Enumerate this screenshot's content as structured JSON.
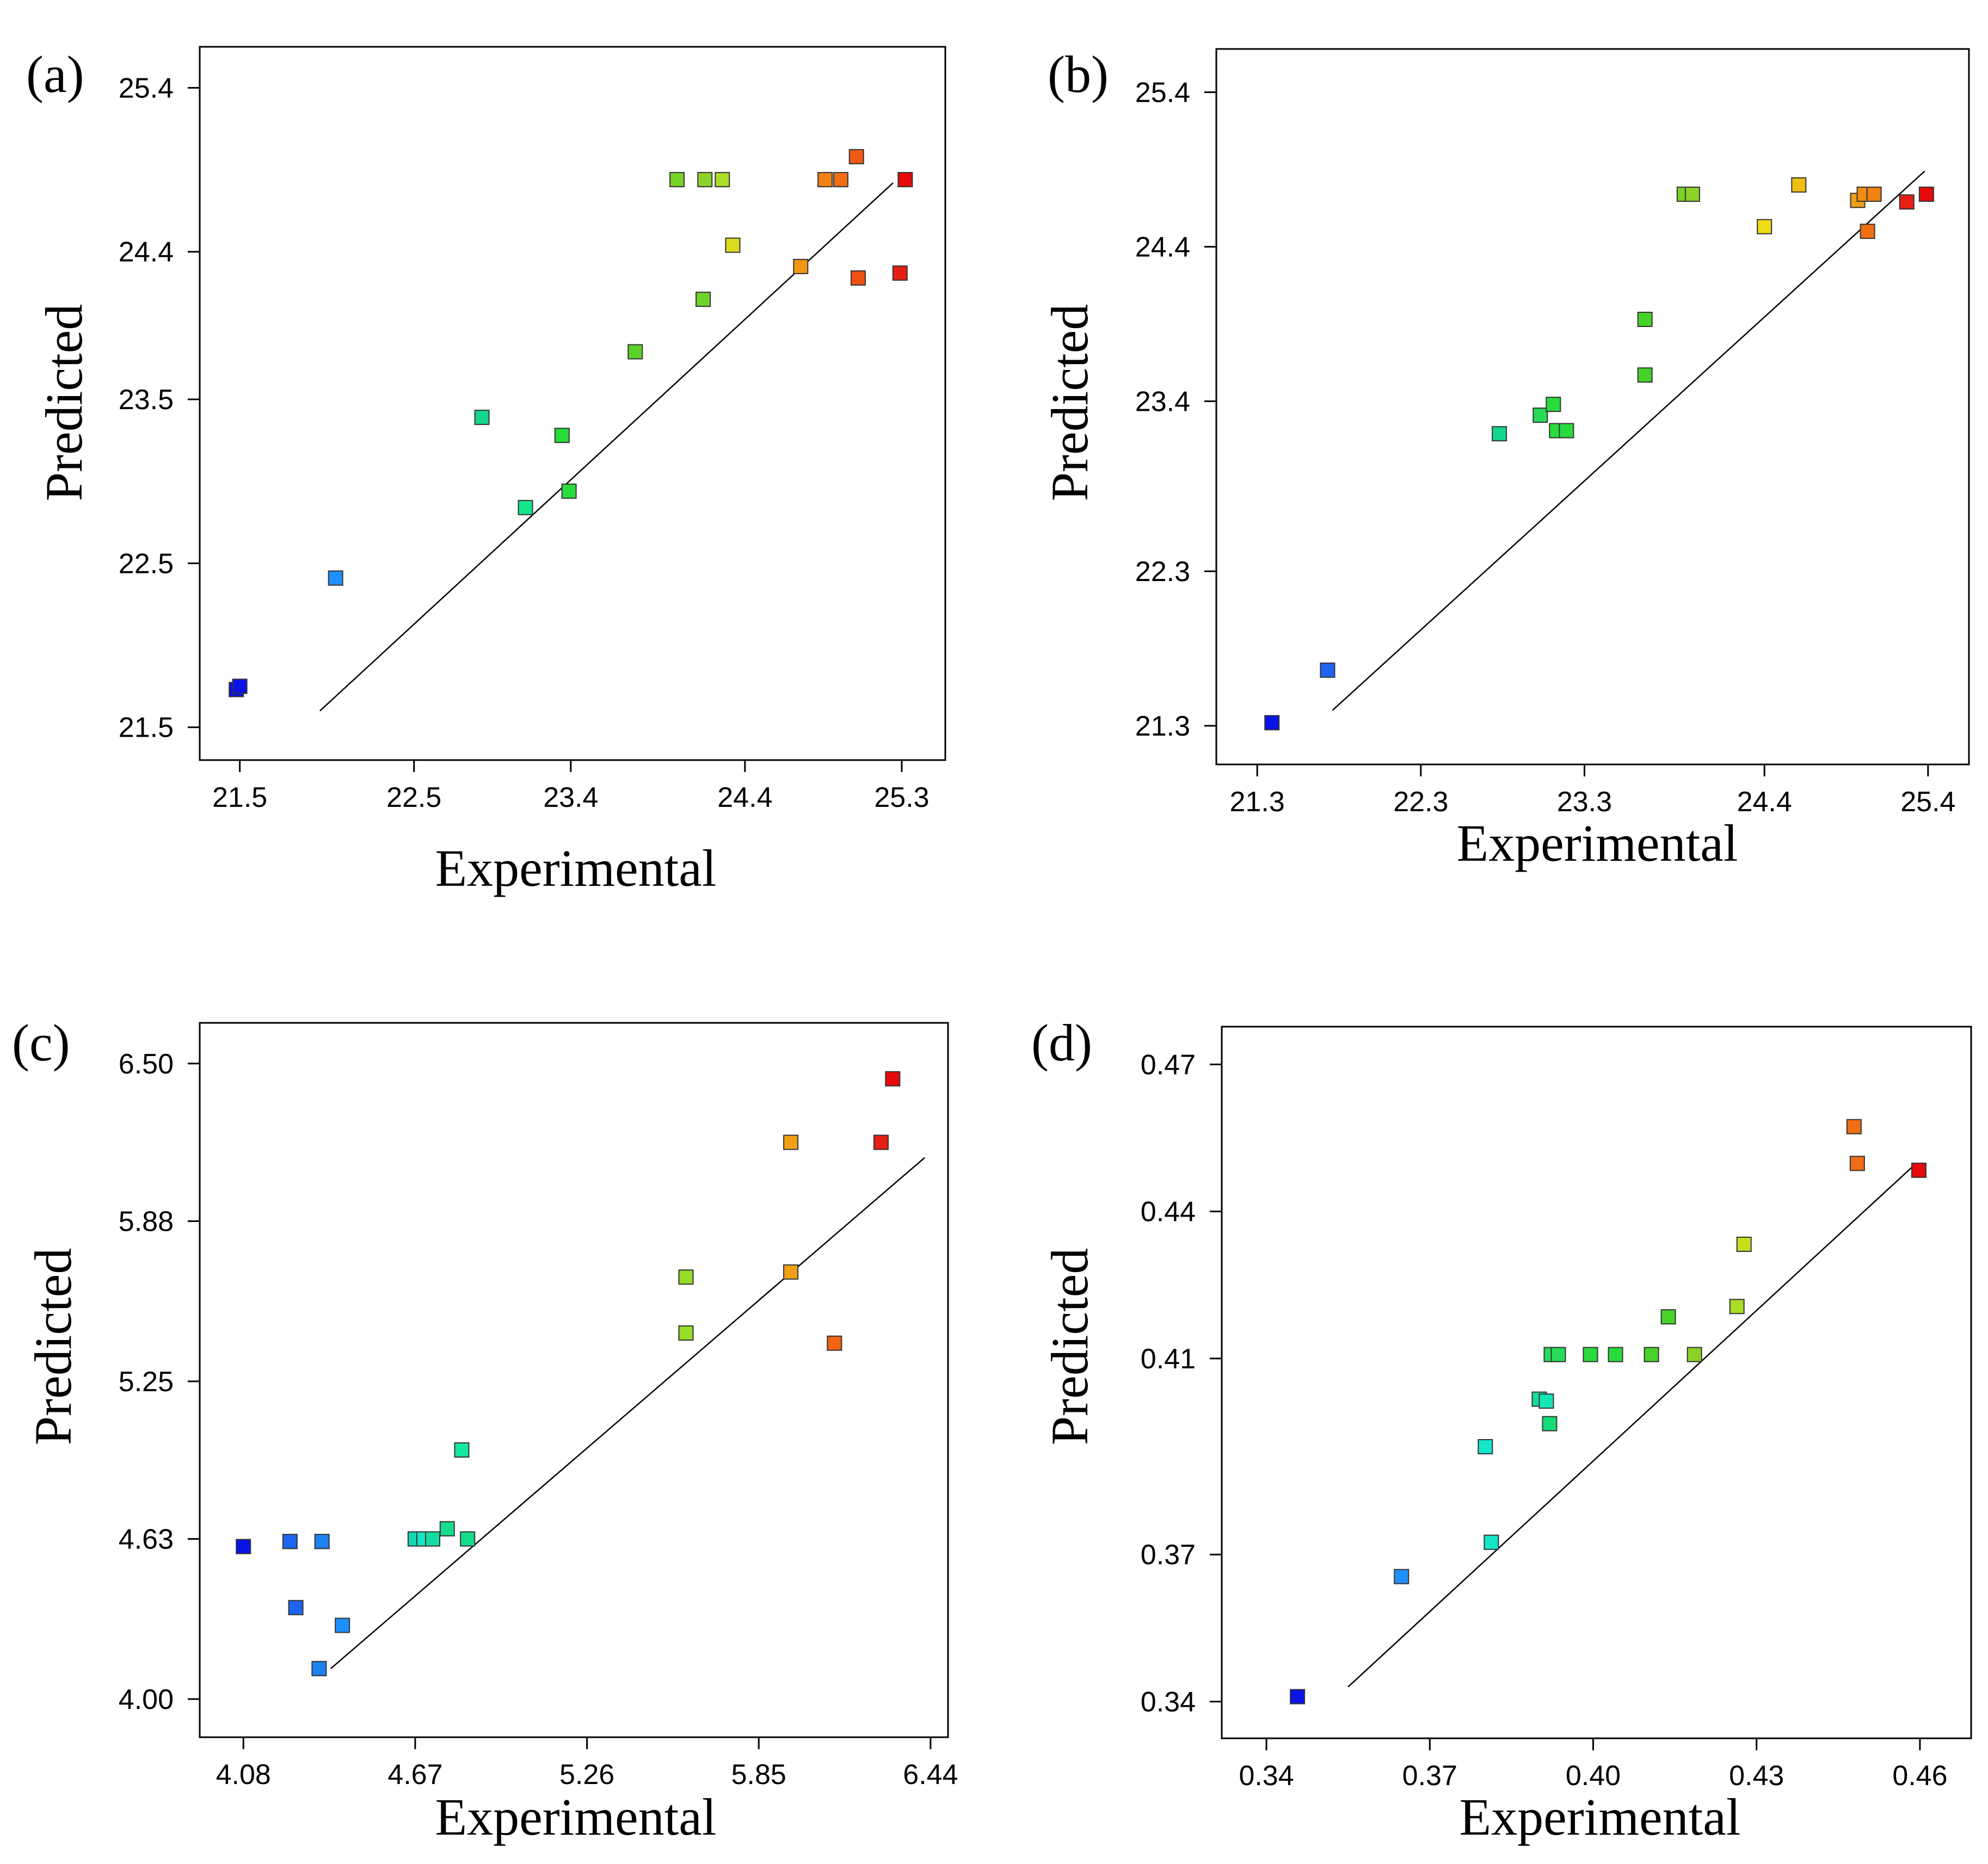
{
  "figure": {
    "panels_count": 4
  },
  "chart_data": [
    {
      "type": "scatter",
      "panel_label": "(a)",
      "xlabel": "Experimental",
      "ylabel": "Predicted",
      "xlim": [
        21.27,
        25.55
      ],
      "ylim": [
        21.3,
        25.65
      ],
      "xticks": [
        21.5,
        22.5,
        23.4,
        24.4,
        25.3
      ],
      "xtick_labels": [
        "21.5",
        "22.5",
        "23.4",
        "24.4",
        "25.3"
      ],
      "yticks": [
        21.5,
        22.5,
        23.5,
        24.4,
        25.4
      ],
      "ytick_labels": [
        "21.5",
        "22.5",
        "23.5",
        "24.4",
        "25.4"
      ],
      "fit_line": {
        "x": [
          21.96,
          25.25
        ],
        "y": [
          21.6,
          24.82
        ]
      },
      "points": [
        {
          "x": 21.48,
          "y": 21.73,
          "color": "#0a14e6"
        },
        {
          "x": 21.5,
          "y": 21.75,
          "color": "#0a14e6"
        },
        {
          "x": 22.05,
          "y": 22.41,
          "color": "#1e90ff"
        },
        {
          "x": 22.89,
          "y": 23.39,
          "color": "#14d68c"
        },
        {
          "x": 23.14,
          "y": 22.84,
          "color": "#14e68c"
        },
        {
          "x": 23.35,
          "y": 23.28,
          "color": "#28dc3c"
        },
        {
          "x": 23.39,
          "y": 22.94,
          "color": "#28dc3c"
        },
        {
          "x": 23.77,
          "y": 23.79,
          "color": "#5ad228"
        },
        {
          "x": 24.01,
          "y": 24.84,
          "color": "#78d228"
        },
        {
          "x": 24.17,
          "y": 24.84,
          "color": "#8cd228"
        },
        {
          "x": 24.27,
          "y": 24.84,
          "color": "#aadc28"
        },
        {
          "x": 24.16,
          "y": 24.11,
          "color": "#6ed228"
        },
        {
          "x": 24.33,
          "y": 24.44,
          "color": "#dcdc1e"
        },
        {
          "x": 24.72,
          "y": 24.31,
          "color": "#f09614"
        },
        {
          "x": 24.86,
          "y": 24.84,
          "color": "#f08214"
        },
        {
          "x": 24.95,
          "y": 24.84,
          "color": "#f06e14"
        },
        {
          "x": 25.04,
          "y": 24.98,
          "color": "#f05a14"
        },
        {
          "x": 25.05,
          "y": 24.24,
          "color": "#f05014"
        },
        {
          "x": 25.29,
          "y": 24.27,
          "color": "#e61e14"
        },
        {
          "x": 25.32,
          "y": 24.84,
          "color": "#e60a0a"
        }
      ]
    },
    {
      "type": "scatter",
      "panel_label": "(b)",
      "xlabel": "Experimental",
      "ylabel": "Predicted",
      "xlim": [
        21.05,
        25.65
      ],
      "ylim": [
        21.05,
        25.68
      ],
      "xticks": [
        21.3,
        22.3,
        23.3,
        24.4,
        25.4
      ],
      "xtick_labels": [
        "21.3",
        "22.3",
        "23.3",
        "24.4",
        "25.4"
      ],
      "yticks": [
        21.3,
        22.3,
        23.4,
        24.4,
        25.4
      ],
      "ytick_labels": [
        "21.3",
        "22.3",
        "23.4",
        "24.4",
        "25.4"
      ],
      "fit_line": {
        "x": [
          21.76,
          25.38
        ],
        "y": [
          21.4,
          24.89
        ]
      },
      "points": [
        {
          "x": 21.39,
          "y": 21.32,
          "color": "#0a14e6"
        },
        {
          "x": 21.73,
          "y": 21.66,
          "color": "#1e64f0"
        },
        {
          "x": 22.78,
          "y": 23.19,
          "color": "#14d68c"
        },
        {
          "x": 23.03,
          "y": 23.31,
          "color": "#28dc5a"
        },
        {
          "x": 23.11,
          "y": 23.38,
          "color": "#28dc3c"
        },
        {
          "x": 23.13,
          "y": 23.21,
          "color": "#28dc3c"
        },
        {
          "x": 23.19,
          "y": 23.21,
          "color": "#28dc3c"
        },
        {
          "x": 23.67,
          "y": 23.57,
          "color": "#46d228"
        },
        {
          "x": 23.67,
          "y": 23.93,
          "color": "#46d228"
        },
        {
          "x": 23.91,
          "y": 24.74,
          "color": "#78d228"
        },
        {
          "x": 23.96,
          "y": 24.74,
          "color": "#8cd228"
        },
        {
          "x": 24.4,
          "y": 24.53,
          "color": "#f0dc14"
        },
        {
          "x": 24.61,
          "y": 24.8,
          "color": "#f0be14"
        },
        {
          "x": 24.97,
          "y": 24.7,
          "color": "#f0a014"
        },
        {
          "x": 25.01,
          "y": 24.74,
          "color": "#f08c14"
        },
        {
          "x": 25.07,
          "y": 24.74,
          "color": "#f08214"
        },
        {
          "x": 25.03,
          "y": 24.5,
          "color": "#f06e14"
        },
        {
          "x": 25.27,
          "y": 24.69,
          "color": "#e61e14"
        },
        {
          "x": 25.39,
          "y": 24.74,
          "color": "#e60a0a"
        }
      ]
    },
    {
      "type": "scatter",
      "panel_label": "(c)",
      "xlabel": "Experimental",
      "ylabel": "Predicted",
      "xlim": [
        3.93,
        6.5
      ],
      "ylim": [
        3.85,
        6.66
      ],
      "xticks": [
        4.08,
        4.67,
        5.26,
        5.85,
        6.44
      ],
      "xtick_labels": [
        "4.08",
        "4.67",
        "5.26",
        "5.85",
        "6.44"
      ],
      "yticks": [
        4.0,
        4.63,
        5.25,
        5.88,
        6.5
      ],
      "ytick_labels": [
        "4.00",
        "4.63",
        "5.25",
        "5.88",
        "6.50"
      ],
      "fit_line": {
        "x": [
          4.38,
          6.42
        ],
        "y": [
          4.12,
          6.13
        ]
      },
      "points": [
        {
          "x": 4.08,
          "y": 4.6,
          "color": "#0a14e6"
        },
        {
          "x": 4.24,
          "y": 4.62,
          "color": "#1e64f0"
        },
        {
          "x": 4.26,
          "y": 4.36,
          "color": "#1e64f0"
        },
        {
          "x": 4.35,
          "y": 4.62,
          "color": "#1e82f0"
        },
        {
          "x": 4.34,
          "y": 4.12,
          "color": "#1e82f0"
        },
        {
          "x": 4.42,
          "y": 4.29,
          "color": "#1e90ff"
        },
        {
          "x": 4.67,
          "y": 4.63,
          "color": "#14d6b4"
        },
        {
          "x": 4.7,
          "y": 4.63,
          "color": "#14e6c8"
        },
        {
          "x": 4.73,
          "y": 4.63,
          "color": "#14dca0"
        },
        {
          "x": 4.78,
          "y": 4.67,
          "color": "#14dc8c"
        },
        {
          "x": 4.83,
          "y": 4.98,
          "color": "#14e6a0"
        },
        {
          "x": 4.85,
          "y": 4.63,
          "color": "#14dc8c"
        },
        {
          "x": 5.6,
          "y": 5.66,
          "color": "#96dc28"
        },
        {
          "x": 5.6,
          "y": 5.44,
          "color": "#96dc28"
        },
        {
          "x": 5.96,
          "y": 6.19,
          "color": "#f0a014"
        },
        {
          "x": 5.96,
          "y": 5.68,
          "color": "#f0a014"
        },
        {
          "x": 6.11,
          "y": 5.4,
          "color": "#f06414"
        },
        {
          "x": 6.27,
          "y": 6.19,
          "color": "#e61e14"
        },
        {
          "x": 6.31,
          "y": 6.44,
          "color": "#e60a0a"
        }
      ]
    },
    {
      "type": "scatter",
      "panel_label": "(d)",
      "xlabel": "Experimental",
      "ylabel": "Predicted",
      "xlim": [
        0.3318,
        0.4694
      ],
      "ylim": [
        0.3325,
        0.4777
      ],
      "xticks": [
        0.34,
        0.37,
        0.4,
        0.43,
        0.46
      ],
      "xtick_labels": [
        "0.34",
        "0.37",
        "0.40",
        "0.43",
        "0.46"
      ],
      "yticks": [
        0.34,
        0.37,
        0.41,
        0.44,
        0.47
      ],
      "ytick_labels": [
        "0.34",
        "0.37",
        "0.41",
        "0.44",
        "0.47"
      ],
      "fit_line": {
        "x": [
          0.355,
          0.459
        ],
        "y": [
          0.343,
          0.4495
        ]
      },
      "points": [
        {
          "x": 0.3457,
          "y": 0.341,
          "color": "#0a14e6"
        },
        {
          "x": 0.3648,
          "y": 0.3655,
          "color": "#1e90ff"
        },
        {
          "x": 0.3802,
          "y": 0.392,
          "color": "#14e6c8"
        },
        {
          "x": 0.3813,
          "y": 0.3725,
          "color": "#14e6c8"
        },
        {
          "x": 0.3901,
          "y": 0.4017,
          "color": "#14dca0"
        },
        {
          "x": 0.3914,
          "y": 0.4013,
          "color": "#14e6b4"
        },
        {
          "x": 0.392,
          "y": 0.3967,
          "color": "#14dc78"
        },
        {
          "x": 0.3923,
          "y": 0.4108,
          "color": "#28dc5a"
        },
        {
          "x": 0.3936,
          "y": 0.4108,
          "color": "#28dc5a"
        },
        {
          "x": 0.3995,
          "y": 0.4108,
          "color": "#28dc3c"
        },
        {
          "x": 0.4041,
          "y": 0.4108,
          "color": "#28dc3c"
        },
        {
          "x": 0.4107,
          "y": 0.4108,
          "color": "#46d228"
        },
        {
          "x": 0.4138,
          "y": 0.4185,
          "color": "#46d228"
        },
        {
          "x": 0.4186,
          "y": 0.4108,
          "color": "#8cd228"
        },
        {
          "x": 0.4264,
          "y": 0.4206,
          "color": "#aadc28"
        },
        {
          "x": 0.4277,
          "y": 0.4333,
          "color": "#c8dc1e"
        },
        {
          "x": 0.4479,
          "y": 0.4573,
          "color": "#f06e14"
        },
        {
          "x": 0.4485,
          "y": 0.4498,
          "color": "#f06e14"
        },
        {
          "x": 0.4598,
          "y": 0.4484,
          "color": "#e60a0a"
        }
      ]
    }
  ]
}
